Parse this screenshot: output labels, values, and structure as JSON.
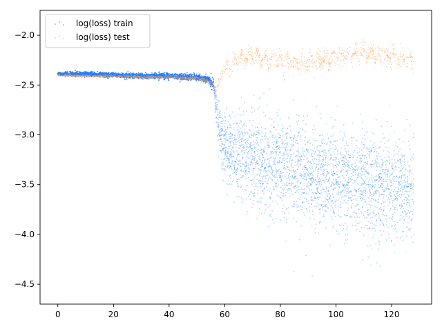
{
  "chart_data": {
    "type": "scatter",
    "title": "",
    "xlabel": "",
    "ylabel": "",
    "xlim": [
      -6.4,
      134.4
    ],
    "ylim": [
      -4.7,
      -1.75
    ],
    "xticks": [
      0,
      20,
      40,
      60,
      80,
      100,
      120
    ],
    "yticks": [
      -4.5,
      -4.0,
      -3.5,
      -3.0,
      -2.5,
      -2.0
    ],
    "xtick_labels": [
      "0",
      "20",
      "40",
      "60",
      "80",
      "100",
      "120"
    ],
    "ytick_labels": [
      "−4.5",
      "−4.0",
      "−3.5",
      "−3.0",
      "−2.5",
      "−2.0"
    ],
    "grid": false,
    "legend": {
      "placement": "upper-left",
      "entries": [
        "log(loss) train",
        "log(loss) test"
      ]
    },
    "series": [
      {
        "name": "log(loss) train",
        "color": "#1f7fff",
        "points": [
          [
            0,
            -2.39
          ],
          [
            10,
            -2.39
          ],
          [
            20,
            -2.4
          ],
          [
            30,
            -2.41
          ],
          [
            40,
            -2.41
          ],
          [
            50,
            -2.42
          ],
          [
            54,
            -2.44
          ],
          [
            56,
            -2.5
          ],
          [
            57,
            -2.75
          ],
          [
            58,
            -2.95
          ],
          [
            60,
            -3.1
          ],
          [
            65,
            -3.2
          ],
          [
            70,
            -3.25
          ],
          [
            80,
            -3.3
          ],
          [
            90,
            -3.4
          ],
          [
            100,
            -3.45
          ],
          [
            110,
            -3.5
          ],
          [
            120,
            -3.52
          ],
          [
            128,
            -3.55
          ]
        ],
        "spread": [
          [
            0,
            0.02
          ],
          [
            54,
            0.03
          ],
          [
            56,
            0.06
          ],
          [
            58,
            0.25
          ],
          [
            60,
            0.35
          ],
          [
            70,
            0.45
          ],
          [
            90,
            0.5
          ],
          [
            110,
            0.5
          ],
          [
            128,
            0.5
          ]
        ]
      },
      {
        "name": "log(loss) test",
        "color": "#ff9a4a",
        "points": [
          [
            0,
            -2.4
          ],
          [
            10,
            -2.41
          ],
          [
            20,
            -2.41
          ],
          [
            30,
            -2.42
          ],
          [
            40,
            -2.42
          ],
          [
            50,
            -2.43
          ],
          [
            55,
            -2.47
          ],
          [
            57,
            -2.55
          ],
          [
            58,
            -2.45
          ],
          [
            60,
            -2.35
          ],
          [
            62,
            -2.3
          ],
          [
            65,
            -2.22
          ],
          [
            70,
            -2.2
          ],
          [
            75,
            -2.25
          ],
          [
            80,
            -2.25
          ],
          [
            85,
            -2.28
          ],
          [
            90,
            -2.27
          ],
          [
            95,
            -2.25
          ],
          [
            100,
            -2.22
          ],
          [
            105,
            -2.2
          ],
          [
            110,
            -2.18
          ],
          [
            115,
            -2.2
          ],
          [
            120,
            -2.22
          ],
          [
            125,
            -2.22
          ],
          [
            128,
            -2.24
          ]
        ],
        "spread": [
          [
            0,
            0.01
          ],
          [
            55,
            0.02
          ],
          [
            58,
            0.05
          ],
          [
            62,
            0.08
          ],
          [
            128,
            0.1
          ]
        ]
      }
    ]
  }
}
